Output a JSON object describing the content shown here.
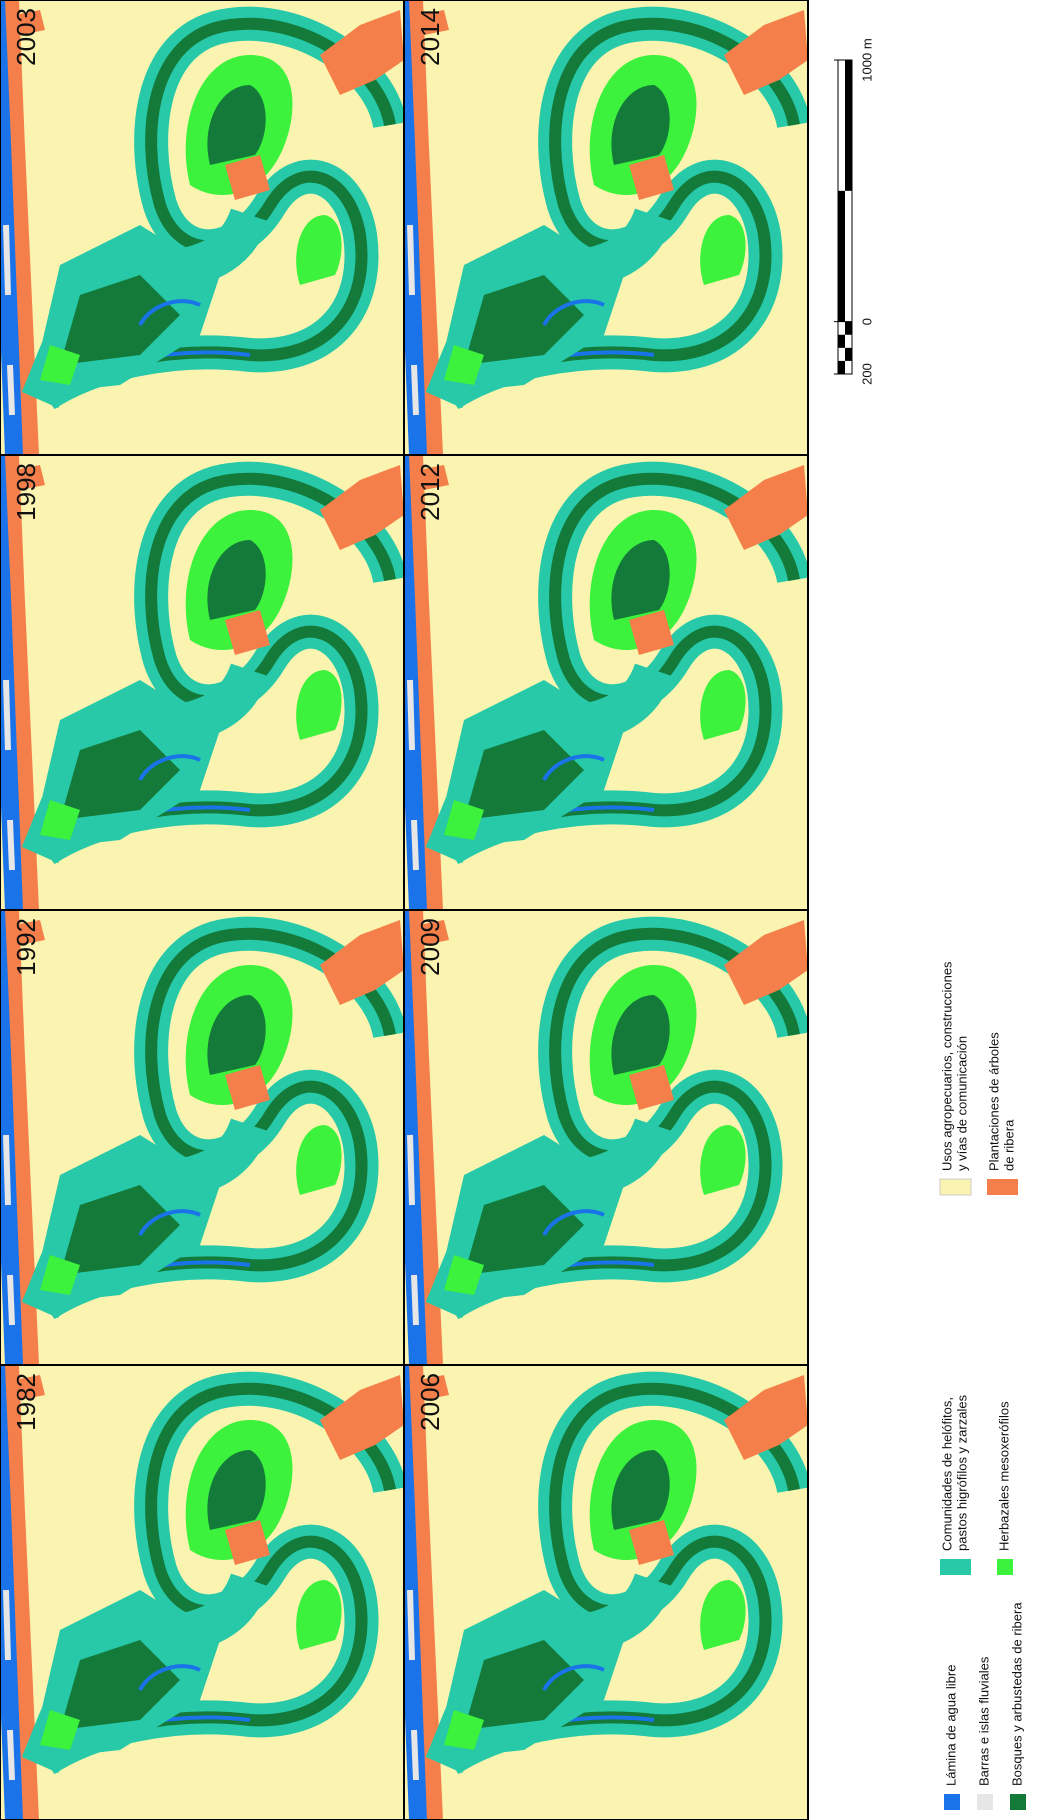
{
  "panels": [
    {
      "year": "1982"
    },
    {
      "year": "1992"
    },
    {
      "year": "1998"
    },
    {
      "year": "2003"
    },
    {
      "year": "2006"
    },
    {
      "year": "2009"
    },
    {
      "year": "2012"
    },
    {
      "year": "2014"
    }
  ],
  "legend": [
    {
      "lines": [
        "Lámina de agua libre"
      ],
      "color": "#1a73e8"
    },
    {
      "lines": [
        "Barras e islas fluviales"
      ],
      "color": "#e6e6e6"
    },
    {
      "lines": [
        "Bosques y arbustedas de ribera"
      ],
      "color": "#137a3a"
    },
    {
      "lines": [
        "Comunidades de helófitos,",
        "pastos higrófilos y zarzales"
      ],
      "color": "#27c9a8"
    },
    {
      "lines": [
        "Herbazales mesoxerófilos"
      ],
      "color": "#3cf23c"
    },
    {
      "lines": [
        "Usos agropecuarios, construcciones",
        "y vías de comunicación"
      ],
      "color": "#fbf4b0"
    },
    {
      "lines": [
        "Plantaciones de árboles",
        "de ribera"
      ],
      "color": "#f47f4a"
    }
  ],
  "scale_bar": {
    "ticks": [
      {
        "value": -200,
        "label": "200"
      },
      0,
      {
        "value": 1000,
        "label": "1000 m"
      }
    ]
  }
}
